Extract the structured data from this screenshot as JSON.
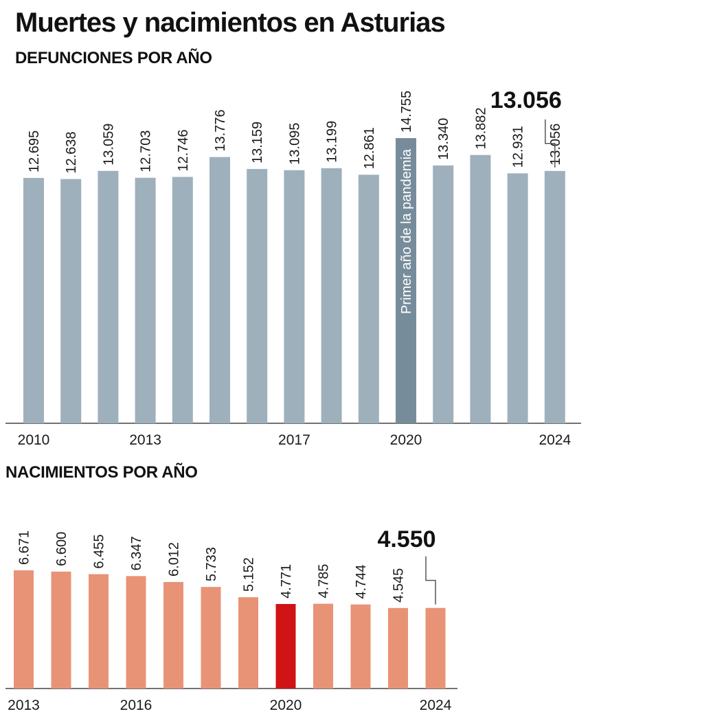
{
  "header": {
    "title": "Muertes y nacimientos en Asturias"
  },
  "colors": {
    "deaths_bar": "#9eb0bc",
    "deaths_highlight": "#778c9b",
    "births_bar": "#e89375",
    "births_highlight": "#d01315",
    "axis": "#444444"
  },
  "chart_data": [
    {
      "type": "bar",
      "title": "DEFUNCIONES POR AÑO",
      "categories": [
        "2010",
        "2011",
        "2012",
        "2013",
        "2014",
        "2015",
        "2016",
        "2017",
        "2018",
        "2019",
        "2020",
        "2021",
        "2022",
        "2023",
        "2024"
      ],
      "values": [
        12695,
        12638,
        13059,
        12703,
        12746,
        13776,
        13159,
        13095,
        13199,
        12861,
        14755,
        13340,
        13882,
        12931,
        13056
      ],
      "value_labels": [
        "12.695",
        "12.638",
        "13.059",
        "12.703",
        "12.746",
        "13.776",
        "13.159",
        "13.095",
        "13.199",
        "12.861",
        "14.755",
        "13.340",
        "13.882",
        "12.931",
        "13.056"
      ],
      "tick_labels": {
        "2010": "2010",
        "2013": "2013",
        "2017": "2017",
        "2020": "2020",
        "2024": "2024"
      },
      "highlight_category": "2020",
      "highlight_annotation": "Primer año de la pandemia",
      "callout_category": "2024",
      "callout_label": "13.056",
      "ylim": [
        0,
        14755
      ],
      "grid": false
    },
    {
      "type": "bar",
      "title": "NACIMIENTOS POR AÑO",
      "categories": [
        "2013",
        "2014",
        "2015",
        "2016",
        "2017",
        "2018",
        "2019",
        "2020",
        "2021",
        "2022",
        "2023",
        "2024"
      ],
      "values": [
        6671,
        6600,
        6455,
        6347,
        6012,
        5733,
        5152,
        4771,
        4785,
        4744,
        4545,
        4550
      ],
      "value_labels": [
        "6.671",
        "6.600",
        "6.455",
        "6.347",
        "6.012",
        "5.733",
        "5.152",
        "4.771",
        "4.785",
        "4.744",
        "4.545",
        ""
      ],
      "tick_labels": {
        "2013": "2013",
        "2016": "2016",
        "2020": "2020",
        "2024": "2024"
      },
      "highlight_category": "2020",
      "callout_category": "2024",
      "callout_label": "4.550",
      "ylim": [
        0,
        6671
      ],
      "grid": false
    }
  ]
}
